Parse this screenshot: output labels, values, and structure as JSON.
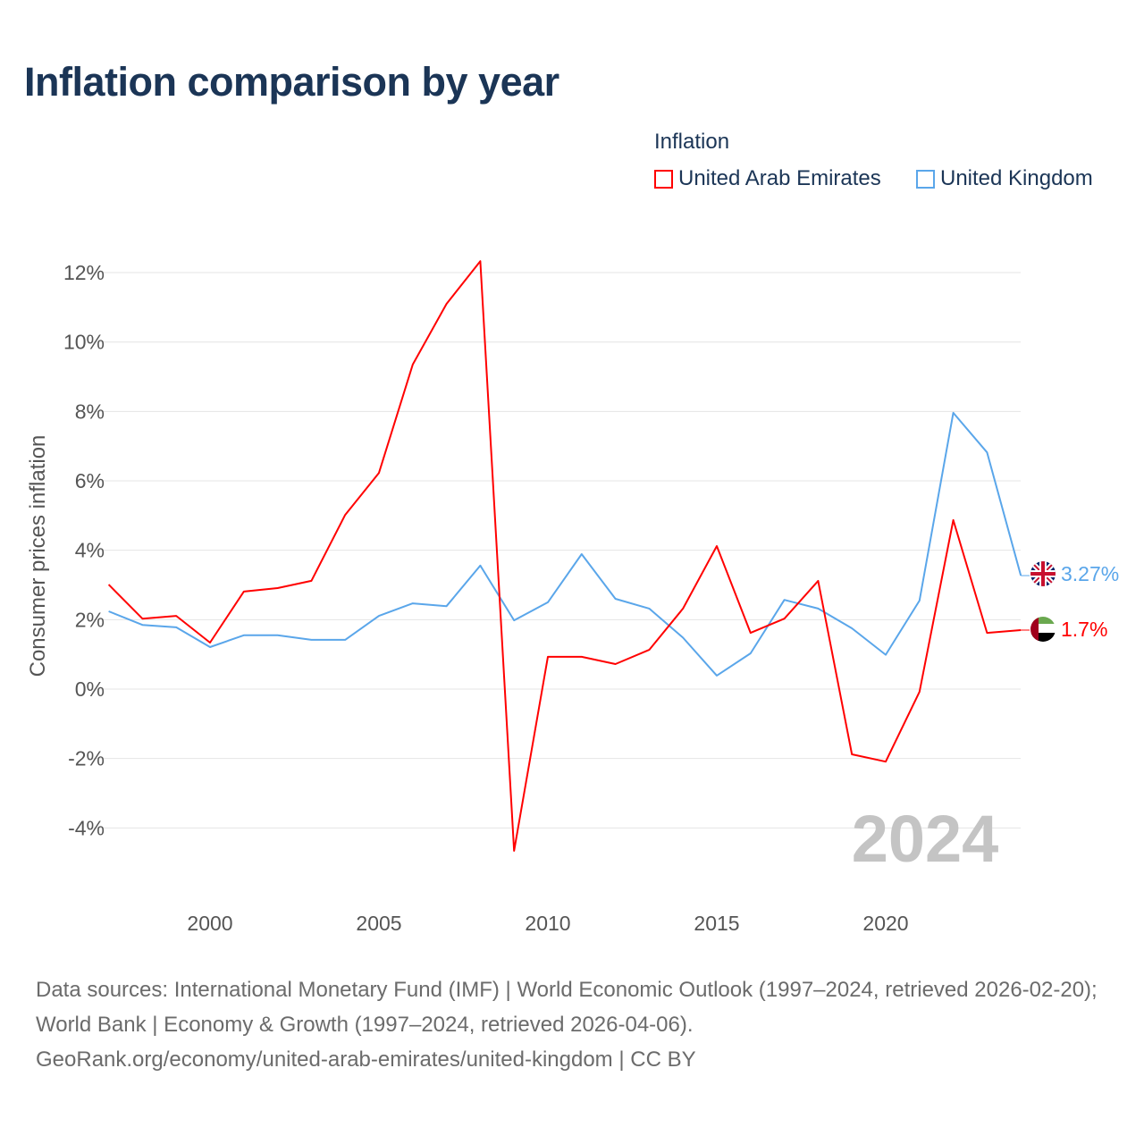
{
  "title": "Inflation comparison by year",
  "legend": {
    "title": "Inflation",
    "items": [
      {
        "label": "United Arab Emirates",
        "color": "#ff0000"
      },
      {
        "label": "United Kingdom",
        "color": "#5aa6ea"
      }
    ]
  },
  "year_watermark": "2024",
  "sources": {
    "line1": "Data sources: International Monetary Fund (IMF) | World Economic Outlook (1997–2024, retrieved 2026-02-20); World Bank | Economy & Growth (1997–2024, retrieved 2026-04-06).",
    "line2": "GeoRank.org/economy/united-arab-emirates/united-kingdom | CC BY"
  },
  "chart_data": {
    "type": "line",
    "title": "Inflation comparison by year",
    "xlabel": "",
    "ylabel": "Consumer prices inflation",
    "x": [
      1997,
      1998,
      1999,
      2000,
      2001,
      2002,
      2003,
      2004,
      2005,
      2006,
      2007,
      2008,
      2009,
      2010,
      2011,
      2012,
      2013,
      2014,
      2015,
      2016,
      2017,
      2018,
      2019,
      2020,
      2021,
      2022,
      2023,
      2024
    ],
    "xlim": [
      1997,
      2024
    ],
    "ylim": [
      -5.5,
      12.5
    ],
    "x_ticks": [
      "2000",
      "2005",
      "2010",
      "2015",
      "2020"
    ],
    "y_ticks": [
      {
        "v": -4,
        "label": "-4%"
      },
      {
        "v": -2,
        "label": "-2%"
      },
      {
        "v": 0,
        "label": "0%"
      },
      {
        "v": 2,
        "label": "2%"
      },
      {
        "v": 4,
        "label": "4%"
      },
      {
        "v": 6,
        "label": "6%"
      },
      {
        "v": 8,
        "label": "8%"
      },
      {
        "v": 10,
        "label": "10%"
      },
      {
        "v": 12,
        "label": "12%"
      }
    ],
    "grid": true,
    "legend_position": "top-right",
    "series": [
      {
        "name": "United Arab Emirates",
        "color": "#ff0000",
        "end_label": "1.7%",
        "values": [
          3.01,
          2.03,
          2.11,
          1.34,
          2.81,
          2.91,
          3.12,
          5.02,
          6.23,
          9.35,
          11.1,
          12.33,
          -4.66,
          0.93,
          0.93,
          0.72,
          1.13,
          2.32,
          4.12,
          1.62,
          2.03,
          3.12,
          -1.88,
          -2.09,
          -0.08,
          4.87,
          1.62,
          1.7
        ]
      },
      {
        "name": "United Kingdom",
        "color": "#5aa6ea",
        "end_label": "3.27%",
        "values": [
          2.24,
          1.85,
          1.78,
          1.21,
          1.55,
          1.55,
          1.42,
          1.42,
          2.11,
          2.47,
          2.39,
          3.56,
          1.98,
          2.5,
          3.89,
          2.6,
          2.32,
          1.48,
          0.39,
          1.03,
          2.57,
          2.32,
          1.75,
          0.99,
          2.55,
          7.96,
          6.82,
          3.27
        ]
      }
    ]
  }
}
